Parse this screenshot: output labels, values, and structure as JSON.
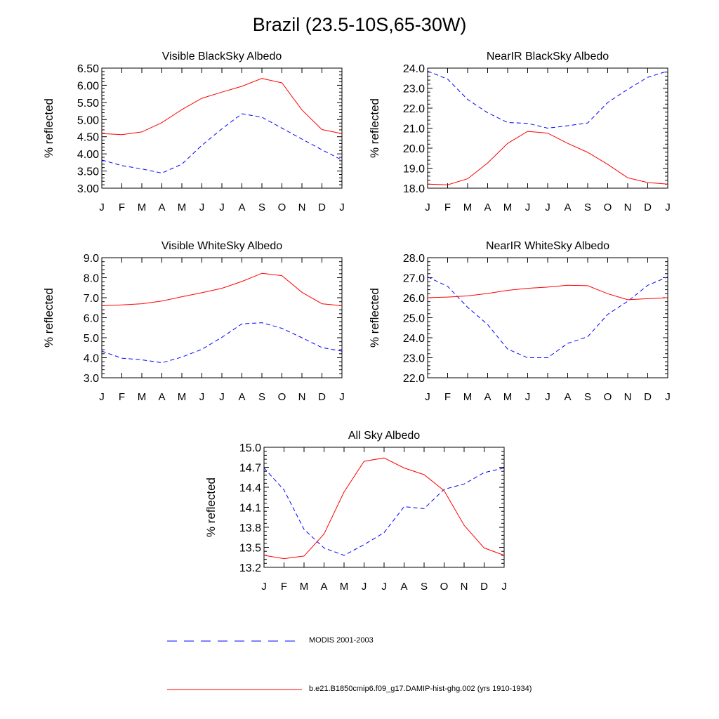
{
  "page": {
    "title": "Brazil (23.5-10S,65-30W)"
  },
  "legend": {
    "entries": [
      {
        "label": "MODIS 2001-2003",
        "color": "#0000ff",
        "style": "dashed"
      },
      {
        "label": "b.e21.B1850cmip6.f09_g17.DAMIP-hist-ghg.002 (yrs 1910-1934)",
        "color": "#ff0000",
        "style": "solid"
      }
    ]
  },
  "chart_data": [
    {
      "type": "line",
      "title": "Visible BlackSky Albedo",
      "ylabel": "% reflected",
      "categories": [
        "J",
        "F",
        "M",
        "A",
        "M",
        "J",
        "J",
        "A",
        "S",
        "O",
        "N",
        "D",
        "J"
      ],
      "ylim": [
        3.0,
        6.5
      ],
      "yticks": [
        "3.00",
        "3.50",
        "4.00",
        "4.50",
        "5.00",
        "5.50",
        "6.00",
        "6.50"
      ],
      "series": [
        {
          "name": "MODIS 2001-2003",
          "color": "#0000ff",
          "style": "dashed",
          "values": [
            3.82,
            3.66,
            3.56,
            3.44,
            3.7,
            4.25,
            4.73,
            5.17,
            5.07,
            4.75,
            4.43,
            4.12,
            3.82
          ]
        },
        {
          "name": "b.e21.B1850cmip6.f09_g17.DAMIP-hist-ghg.002 (yrs 1910-1934)",
          "color": "#ff0000",
          "style": "solid",
          "values": [
            4.59,
            4.56,
            4.64,
            4.91,
            5.29,
            5.62,
            5.8,
            5.97,
            6.2,
            6.07,
            5.28,
            4.71,
            4.59
          ]
        }
      ]
    },
    {
      "type": "line",
      "title": "NearIR BlackSky Albedo",
      "ylabel": "% reflected",
      "categories": [
        "J",
        "F",
        "M",
        "A",
        "M",
        "J",
        "J",
        "A",
        "S",
        "O",
        "N",
        "D",
        "J"
      ],
      "ylim": [
        18.0,
        24.0
      ],
      "yticks": [
        "18.0",
        "19.0",
        "20.0",
        "21.0",
        "22.0",
        "23.0",
        "24.0"
      ],
      "series": [
        {
          "name": "MODIS 2001-2003",
          "color": "#0000ff",
          "style": "dashed",
          "values": [
            23.85,
            23.45,
            22.43,
            21.77,
            21.28,
            21.24,
            21.0,
            21.12,
            21.26,
            22.28,
            22.94,
            23.54,
            23.85
          ]
        },
        {
          "name": "b.e21.B1850cmip6.f09_g17.DAMIP-hist-ghg.002 (yrs 1910-1934)",
          "color": "#ff0000",
          "style": "solid",
          "values": [
            18.2,
            18.17,
            18.47,
            19.26,
            20.24,
            20.84,
            20.75,
            20.24,
            19.79,
            19.19,
            18.52,
            18.28,
            18.2
          ]
        }
      ]
    },
    {
      "type": "line",
      "title": "Visible WhiteSky Albedo",
      "ylabel": "% reflected",
      "categories": [
        "J",
        "F",
        "M",
        "A",
        "M",
        "J",
        "J",
        "A",
        "S",
        "O",
        "N",
        "D",
        "J"
      ],
      "ylim": [
        3.0,
        9.0
      ],
      "yticks": [
        "3.0",
        "4.0",
        "5.0",
        "6.0",
        "7.0",
        "8.0",
        "9.0"
      ],
      "series": [
        {
          "name": "MODIS 2001-2003",
          "color": "#0000ff",
          "style": "dashed",
          "values": [
            4.33,
            3.98,
            3.9,
            3.75,
            4.03,
            4.42,
            5.02,
            5.69,
            5.75,
            5.47,
            5.0,
            4.51,
            4.33
          ]
        },
        {
          "name": "b.e21.B1850cmip6.f09_g17.DAMIP-hist-ghg.002 (yrs 1910-1934)",
          "color": "#ff0000",
          "style": "solid",
          "values": [
            6.6,
            6.64,
            6.7,
            6.83,
            7.05,
            7.25,
            7.47,
            7.81,
            8.22,
            8.1,
            7.27,
            6.7,
            6.6
          ]
        }
      ]
    },
    {
      "type": "line",
      "title": "NearIR WhiteSky Albedo",
      "ylabel": "% reflected",
      "categories": [
        "J",
        "F",
        "M",
        "A",
        "M",
        "J",
        "J",
        "A",
        "S",
        "O",
        "N",
        "D",
        "J"
      ],
      "ylim": [
        22.0,
        28.0
      ],
      "yticks": [
        "22.0",
        "23.0",
        "24.0",
        "25.0",
        "26.0",
        "27.0",
        "28.0"
      ],
      "series": [
        {
          "name": "MODIS 2001-2003",
          "color": "#0000ff",
          "style": "dashed",
          "values": [
            27.04,
            26.57,
            25.52,
            24.66,
            23.43,
            23.0,
            23.0,
            23.72,
            24.05,
            25.17,
            25.82,
            26.62,
            27.04
          ]
        },
        {
          "name": "b.e21.B1850cmip6.f09_g17.DAMIP-hist-ghg.002 (yrs 1910-1934)",
          "color": "#ff0000",
          "style": "solid",
          "values": [
            26.0,
            26.03,
            26.09,
            26.21,
            26.37,
            26.47,
            26.53,
            26.62,
            26.6,
            26.2,
            25.9,
            25.95,
            26.0
          ]
        }
      ]
    },
    {
      "type": "line",
      "title": "All Sky Albedo",
      "ylabel": "% reflected",
      "categories": [
        "J",
        "F",
        "M",
        "A",
        "M",
        "J",
        "J",
        "A",
        "S",
        "O",
        "N",
        "D",
        "J"
      ],
      "ylim": [
        13.2,
        15.0
      ],
      "yticks": [
        "13.2",
        "13.5",
        "13.8",
        "14.1",
        "14.4",
        "14.7",
        "15.0"
      ],
      "series": [
        {
          "name": "MODIS 2001-2003",
          "color": "#0000ff",
          "style": "dashed",
          "values": [
            14.69,
            14.36,
            13.77,
            13.49,
            13.38,
            13.54,
            13.72,
            14.11,
            14.08,
            14.37,
            14.45,
            14.62,
            14.69
          ]
        },
        {
          "name": "b.e21.B1850cmip6.f09_g17.DAMIP-hist-ghg.002 (yrs 1910-1934)",
          "color": "#ff0000",
          "style": "solid",
          "values": [
            13.38,
            13.33,
            13.37,
            13.7,
            14.33,
            14.79,
            14.84,
            14.69,
            14.59,
            14.35,
            13.83,
            13.49,
            13.38
          ]
        }
      ]
    }
  ]
}
